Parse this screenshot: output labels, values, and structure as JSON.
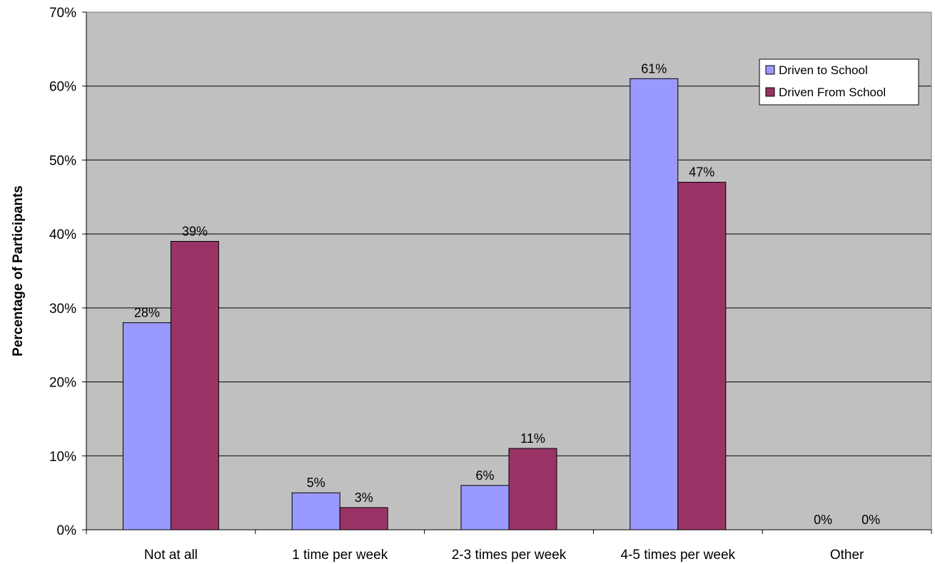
{
  "chart_data": {
    "type": "bar",
    "title": "",
    "xlabel": "",
    "ylabel": "Percentage of Participants",
    "ylim": [
      0,
      70
    ],
    "ytick_step": 10,
    "ytick_suffix": "%",
    "grid": true,
    "legend_position": "top-right",
    "plot_background": "#c0c0c0",
    "categories": [
      "Not at all",
      "1 time per week",
      "2-3 times per week",
      "4-5 times per week",
      "Other"
    ],
    "series": [
      {
        "name": "Driven to School",
        "color": "#9999ff",
        "values": [
          28,
          5,
          6,
          61,
          0
        ],
        "labels": [
          "28%",
          "5%",
          "6%",
          "61%",
          "0%"
        ]
      },
      {
        "name": "Driven From School",
        "color": "#993366",
        "values": [
          39,
          3,
          11,
          47,
          0
        ],
        "labels": [
          "39%",
          "3%",
          "11%",
          "47%",
          "0%"
        ]
      }
    ]
  }
}
